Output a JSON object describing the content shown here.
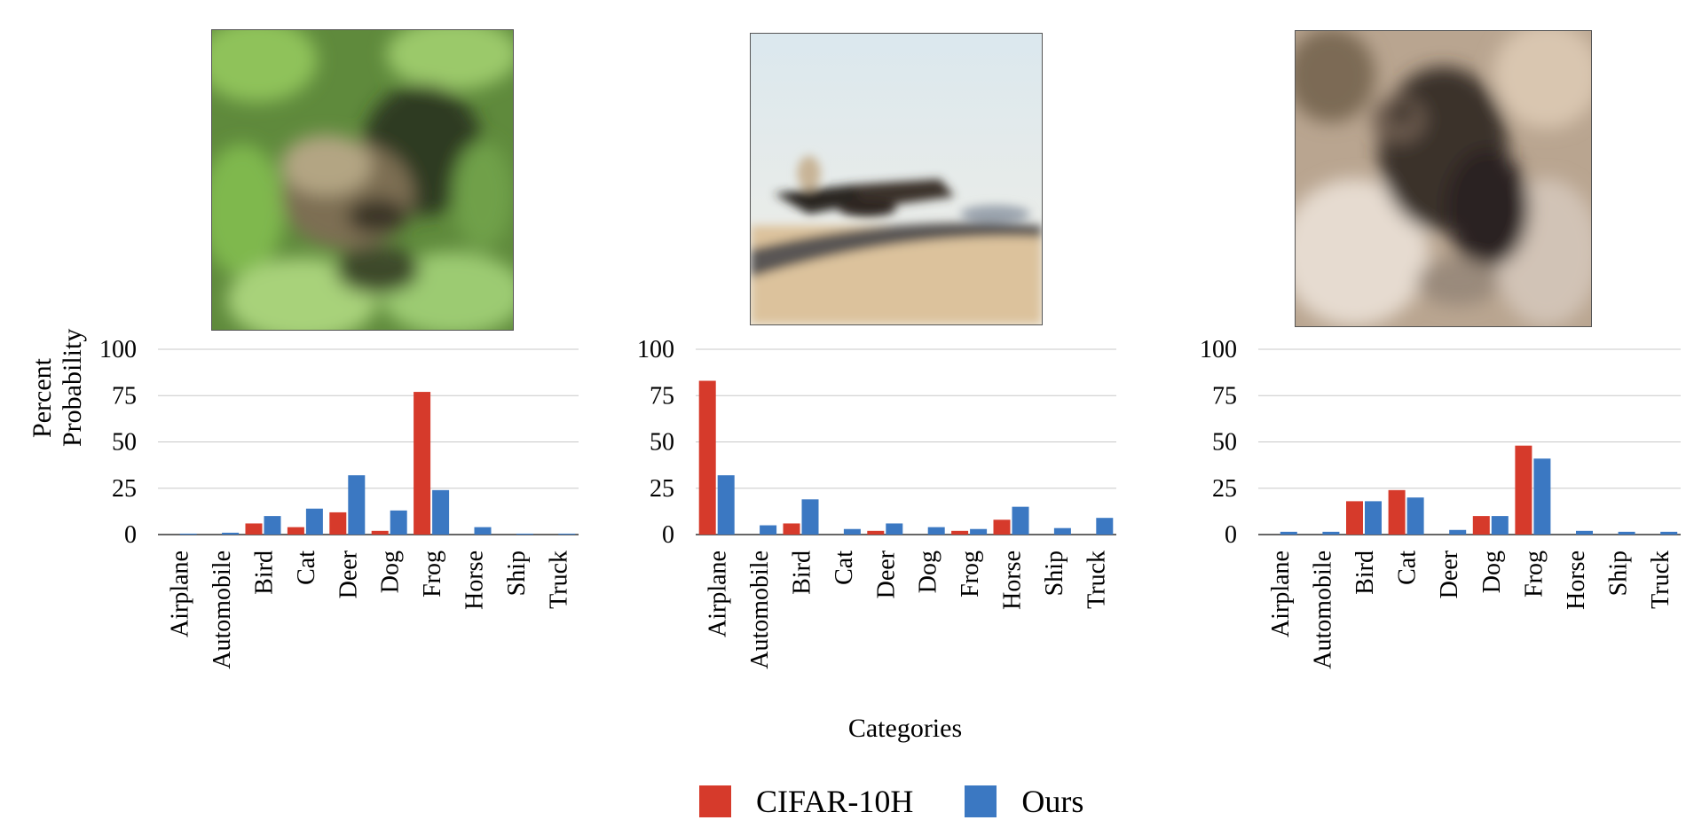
{
  "figure": {
    "ylabel_lines": [
      "Percent",
      "Probability"
    ],
    "xlabel": "Categories",
    "legend": [
      {
        "name": "CIFAR-10H",
        "color": "#d63a2b"
      },
      {
        "name": "Ours",
        "color": "#3b78c2"
      }
    ],
    "images": [
      {
        "subject": "frog-on-leaves"
      },
      {
        "subject": "airplane-on-runway"
      },
      {
        "subject": "dark-animal-closeup"
      }
    ]
  },
  "chart_data": [
    {
      "type": "bar",
      "categories": [
        "Airplane",
        "Automobile",
        "Bird",
        "Cat",
        "Deer",
        "Dog",
        "Frog",
        "Horse",
        "Ship",
        "Truck"
      ],
      "ylim": [
        0,
        100
      ],
      "yticks": [
        0,
        25,
        50,
        75,
        100
      ],
      "grid": true,
      "series": [
        {
          "name": "CIFAR-10H",
          "values": [
            0,
            0,
            6,
            4,
            12,
            2,
            77,
            0,
            0,
            0
          ]
        },
        {
          "name": "Ours",
          "values": [
            0.5,
            1,
            10,
            14,
            32,
            13,
            24,
            4,
            0.5,
            0.5
          ]
        }
      ]
    },
    {
      "type": "bar",
      "categories": [
        "Airplane",
        "Automobile",
        "Bird",
        "Cat",
        "Deer",
        "Dog",
        "Frog",
        "Horse",
        "Ship",
        "Truck"
      ],
      "ylim": [
        0,
        100
      ],
      "yticks": [
        0,
        25,
        50,
        75,
        100
      ],
      "grid": true,
      "series": [
        {
          "name": "CIFAR-10H",
          "values": [
            83,
            0,
            6,
            0,
            2,
            0,
            2,
            8,
            0,
            0
          ]
        },
        {
          "name": "Ours",
          "values": [
            32,
            5,
            19,
            3,
            6,
            4,
            3,
            15,
            3.5,
            9
          ]
        }
      ]
    },
    {
      "type": "bar",
      "categories": [
        "Airplane",
        "Automobile",
        "Bird",
        "Cat",
        "Deer",
        "Dog",
        "Frog",
        "Horse",
        "Ship",
        "Truck"
      ],
      "ylim": [
        0,
        100
      ],
      "yticks": [
        0,
        25,
        50,
        75,
        100
      ],
      "grid": true,
      "series": [
        {
          "name": "CIFAR-10H",
          "values": [
            0,
            0,
            18,
            24,
            0,
            10,
            48,
            0,
            0,
            0
          ]
        },
        {
          "name": "Ours",
          "values": [
            1.5,
            1.5,
            18,
            20,
            2.5,
            10,
            41,
            2,
            1.5,
            1.5
          ]
        }
      ]
    }
  ]
}
